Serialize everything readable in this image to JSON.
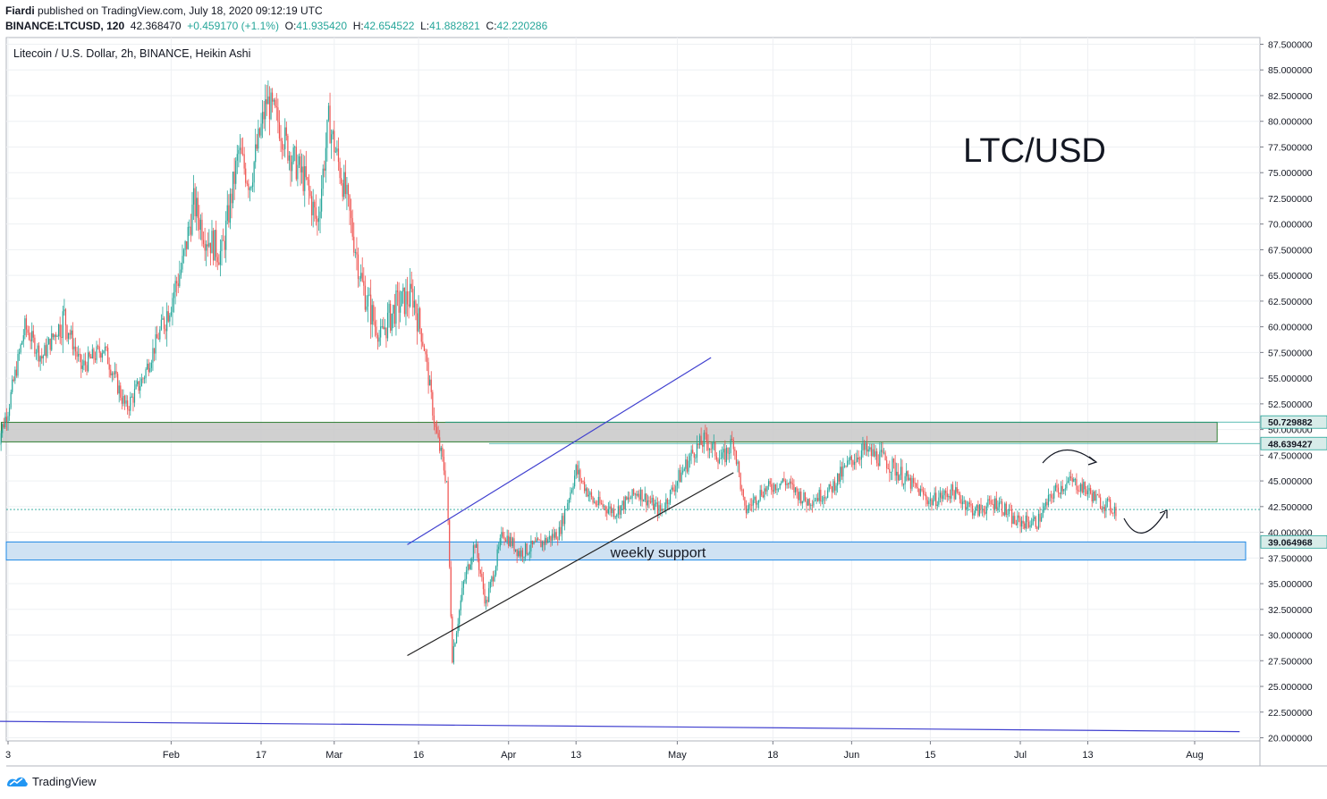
{
  "header": {
    "author": "Fiardi",
    "published_text": "published on TradingView.com, July 18, 2020 09:12:19 UTC",
    "symbol": "BINANCE:LTCUSD, 120",
    "last": "42.368470",
    "change": "+0.459170 (+1.1%)",
    "o_label": "O:",
    "o_value": "41.935420",
    "h_label": "H:",
    "h_value": "42.654522",
    "l_label": "L:",
    "l_value": "41.882821",
    "c_label": "C:",
    "c_value": "42.220286"
  },
  "footer": {
    "brand": "TradingView"
  },
  "colors": {
    "up": "#26a69a",
    "down": "#ef5350",
    "resistance_zone": "#c8c8c8",
    "support_zone": "#cfe2f3",
    "channel_upper": "#3f3fcf",
    "channel_lower": "#222222"
  },
  "chart_data": {
    "type": "candlestick",
    "title": "Litecoin / U.S. Dollar, 2h, BINANCE, Heikin Ashi",
    "annotation_title": "LTC/USD",
    "xlabel": "",
    "ylabel": "",
    "ylim": [
      20,
      87.5
    ],
    "y_ticks": [
      "87.500000",
      "85.000000",
      "82.500000",
      "80.000000",
      "77.500000",
      "75.000000",
      "72.500000",
      "70.000000",
      "67.500000",
      "65.000000",
      "62.500000",
      "60.000000",
      "57.500000",
      "55.000000",
      "52.500000",
      "50.000000",
      "47.500000",
      "45.000000",
      "42.500000",
      "40.000000",
      "37.500000",
      "35.000000",
      "32.500000",
      "30.000000",
      "27.500000",
      "25.000000",
      "22.500000",
      "20.000000"
    ],
    "y_tick_values": [
      87.5,
      85,
      82.5,
      80,
      77.5,
      75,
      72.5,
      70,
      67.5,
      65,
      62.5,
      60,
      57.5,
      55,
      52.5,
      50,
      47.5,
      45,
      42.5,
      40,
      37.5,
      35,
      32.5,
      30,
      27.5,
      25,
      22.5,
      20
    ],
    "x_ticks": [
      "3",
      "Feb",
      "17",
      "Mar",
      "16",
      "Apr",
      "13",
      "May",
      "18",
      "Jun",
      "15",
      "Jul",
      "13",
      "Aug"
    ],
    "x_tick_dates": [
      "2020-01-03",
      "2020-02-01",
      "2020-02-17",
      "2020-03-01",
      "2020-03-16",
      "2020-04-01",
      "2020-04-13",
      "2020-05-01",
      "2020-05-18",
      "2020-06-01",
      "2020-06-15",
      "2020-07-01",
      "2020-07-13",
      "2020-08-01"
    ],
    "price_labels": [
      {
        "value": 50.729882,
        "text": "50.729882"
      },
      {
        "value": 48.639427,
        "text": "48.639427"
      },
      {
        "value": 39.064968,
        "text": "39.064968"
      }
    ],
    "current_price": 42.22,
    "zones": [
      {
        "name": "resistance",
        "top": 50.7,
        "bottom": 48.8,
        "from": "2020-01-01",
        "to": "2020-08-01"
      },
      {
        "name": "weekly support",
        "label": "weekly support",
        "top": 39.06,
        "bottom": 37.3,
        "from": "2020-01-01",
        "to": "2020-08-08"
      }
    ],
    "trendlines": [
      {
        "name": "channel-upper",
        "from": [
          "2020-03-14",
          38.8
        ],
        "to": [
          "2020-05-07",
          57.0
        ]
      },
      {
        "name": "channel-lower",
        "from": [
          "2020-03-14",
          28.0
        ],
        "to": [
          "2020-05-11",
          45.8
        ]
      },
      {
        "name": "long-term-support",
        "from": [
          "2020-01-01",
          21.6
        ],
        "to": [
          "2020-08-09",
          20.6
        ]
      }
    ],
    "price_path": [
      [
        "2020-01-01",
        48.5
      ],
      [
        "2020-01-03",
        52
      ],
      [
        "2020-01-06",
        60
      ],
      [
        "2020-01-09",
        57
      ],
      [
        "2020-01-13",
        61
      ],
      [
        "2020-01-16",
        56
      ],
      [
        "2020-01-20",
        58
      ],
      [
        "2020-01-24",
        52
      ],
      [
        "2020-01-27",
        55
      ],
      [
        "2020-01-31",
        61
      ],
      [
        "2020-02-03",
        66
      ],
      [
        "2020-02-05",
        72
      ],
      [
        "2020-02-07",
        69
      ],
      [
        "2020-02-10",
        67
      ],
      [
        "2020-02-13",
        77
      ],
      [
        "2020-02-15",
        74
      ],
      [
        "2020-02-18",
        82
      ],
      [
        "2020-02-20",
        80
      ],
      [
        "2020-02-22",
        77
      ],
      [
        "2020-02-25",
        74
      ],
      [
        "2020-02-27",
        70
      ],
      [
        "2020-02-29",
        80
      ],
      [
        "2020-03-03",
        73
      ],
      [
        "2020-03-06",
        64
      ],
      [
        "2020-03-09",
        59
      ],
      [
        "2020-03-12",
        62
      ],
      [
        "2020-03-15",
        63
      ],
      [
        "2020-03-17",
        58
      ],
      [
        "2020-03-19",
        50
      ],
      [
        "2020-03-21",
        45
      ],
      [
        "2020-03-22",
        28
      ],
      [
        "2020-03-24",
        35
      ],
      [
        "2020-03-26",
        39
      ],
      [
        "2020-03-28",
        33
      ],
      [
        "2020-03-31",
        40
      ],
      [
        "2020-04-03",
        38
      ],
      [
        "2020-04-07",
        39
      ],
      [
        "2020-04-10",
        40
      ],
      [
        "2020-04-13",
        46
      ],
      [
        "2020-04-16",
        43
      ],
      [
        "2020-04-20",
        42
      ],
      [
        "2020-04-24",
        44
      ],
      [
        "2020-04-28",
        42
      ],
      [
        "2020-05-01",
        45
      ],
      [
        "2020-05-04",
        48
      ],
      [
        "2020-05-06",
        49
      ],
      [
        "2020-05-09",
        47
      ],
      [
        "2020-05-11",
        49
      ],
      [
        "2020-05-13",
        42
      ],
      [
        "2020-05-16",
        44
      ],
      [
        "2020-05-20",
        45
      ],
      [
        "2020-05-24",
        43
      ],
      [
        "2020-05-28",
        44
      ],
      [
        "2020-06-01",
        47
      ],
      [
        "2020-06-03",
        48
      ],
      [
        "2020-06-07",
        47
      ],
      [
        "2020-06-11",
        45
      ],
      [
        "2020-06-15",
        43
      ],
      [
        "2020-06-19",
        44
      ],
      [
        "2020-06-23",
        42
      ],
      [
        "2020-06-27",
        43
      ],
      [
        "2020-06-30",
        41
      ],
      [
        "2020-07-04",
        41
      ],
      [
        "2020-07-07",
        44
      ],
      [
        "2020-07-10",
        45
      ],
      [
        "2020-07-13",
        44
      ],
      [
        "2020-07-15",
        43
      ],
      [
        "2020-07-18",
        42.2
      ]
    ]
  }
}
